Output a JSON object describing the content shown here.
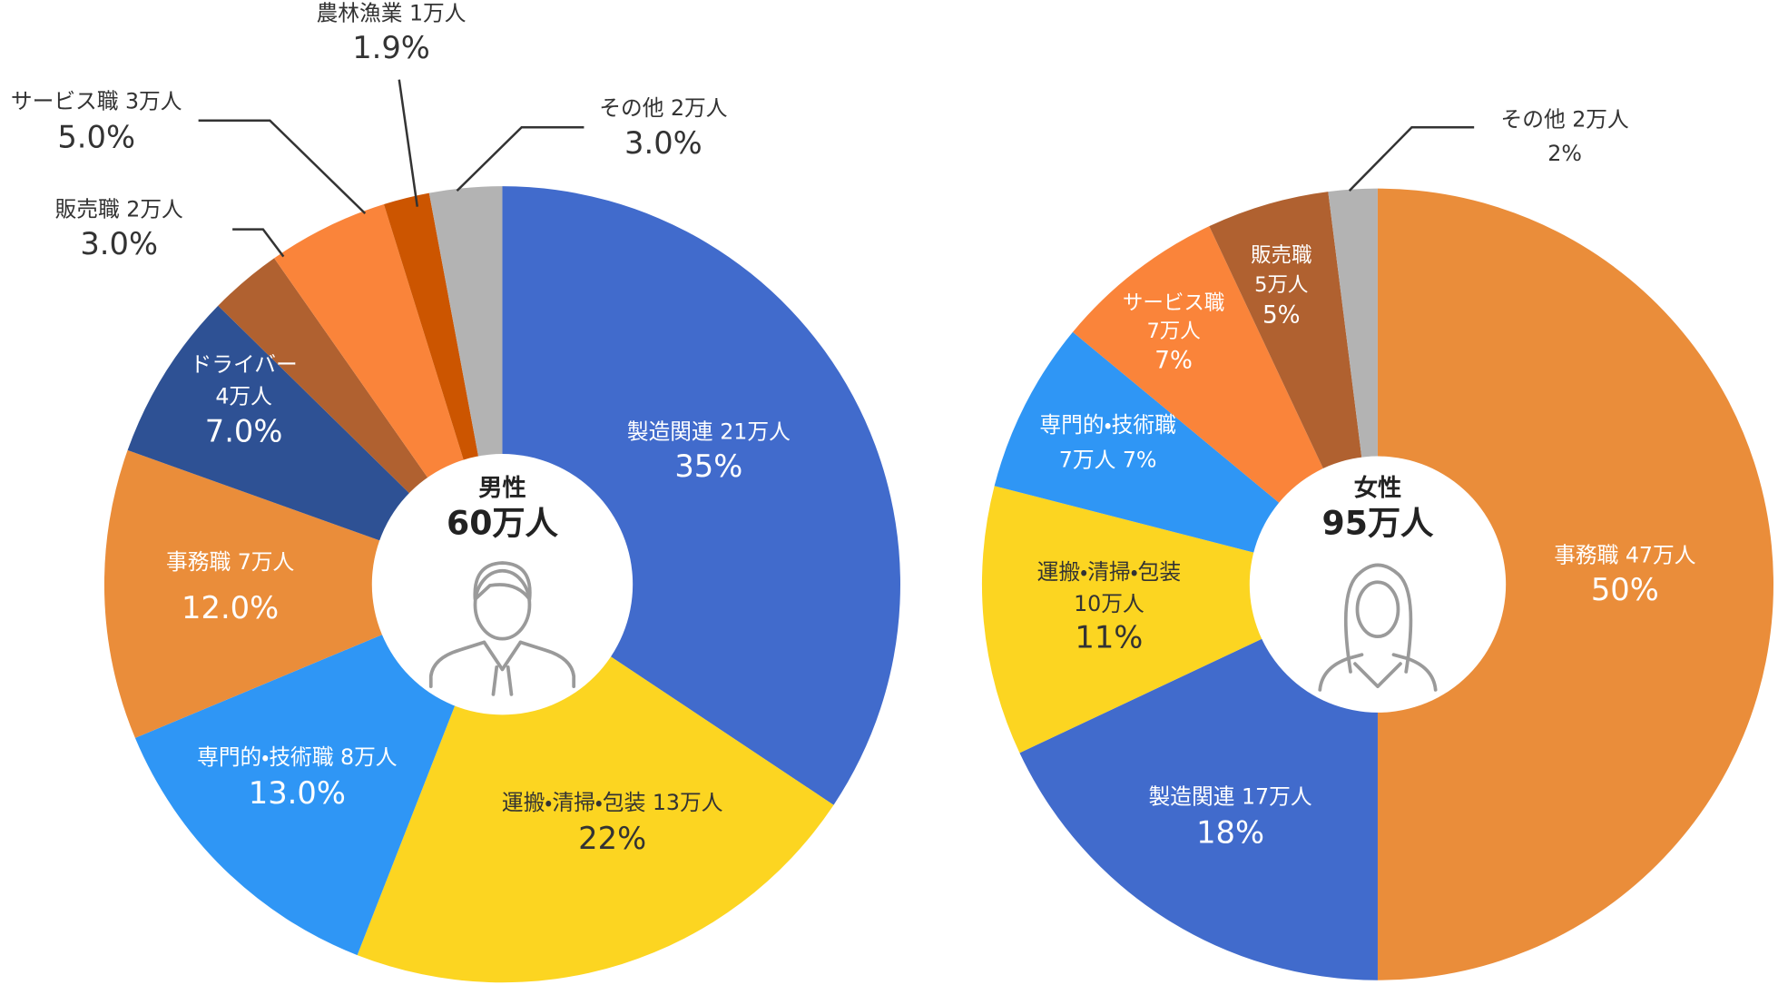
{
  "chart_data": [
    {
      "type": "pie",
      "center_title": "男性",
      "center_value": "60万人",
      "categories": [
        "製造関連",
        "運搬・清掃・包装",
        "専門的・技術職",
        "事務職",
        "ドライバー",
        "販売職",
        "サービス職",
        "農林漁業",
        "その他"
      ],
      "count_labels": [
        "21万人",
        "13万人",
        "8万人",
        "7万人",
        "4万人",
        "2万人",
        "3万人",
        "1万人",
        "2万人"
      ],
      "values": [
        35,
        22,
        13,
        12,
        7,
        3,
        5,
        1.9,
        3
      ],
      "value_labels": [
        "35%",
        "22%",
        "13.0%",
        "12.0%",
        "7.0%",
        "3.0%",
        "5.0%",
        "1.9%",
        "3.0%"
      ],
      "colors": [
        "#416bcc",
        "#fcd521",
        "#2f96f5",
        "#ea8d3a",
        "#2e5194",
        "#b06130",
        "#fa843a",
        "#cc5500",
        "#b3b3b3"
      ]
    },
    {
      "type": "pie",
      "center_title": "女性",
      "center_value": "95万人",
      "categories": [
        "事務職",
        "製造関連",
        "運搬・清掃・包装",
        "専門的・技術職",
        "サービス職",
        "販売職",
        "その他"
      ],
      "count_labels": [
        "47万人",
        "17万人",
        "10万人",
        "7万人",
        "7万人",
        "5万人",
        "2万人"
      ],
      "values": [
        50,
        18,
        11,
        7,
        7,
        5,
        2
      ],
      "value_labels": [
        "50%",
        "18%",
        "11%",
        "7%",
        "7%",
        "5%",
        "2%"
      ],
      "colors": [
        "#ea8d3a",
        "#416bcc",
        "#fcd521",
        "#2f96f5",
        "#fa843a",
        "#b06130",
        "#b3b3b3"
      ]
    }
  ]
}
